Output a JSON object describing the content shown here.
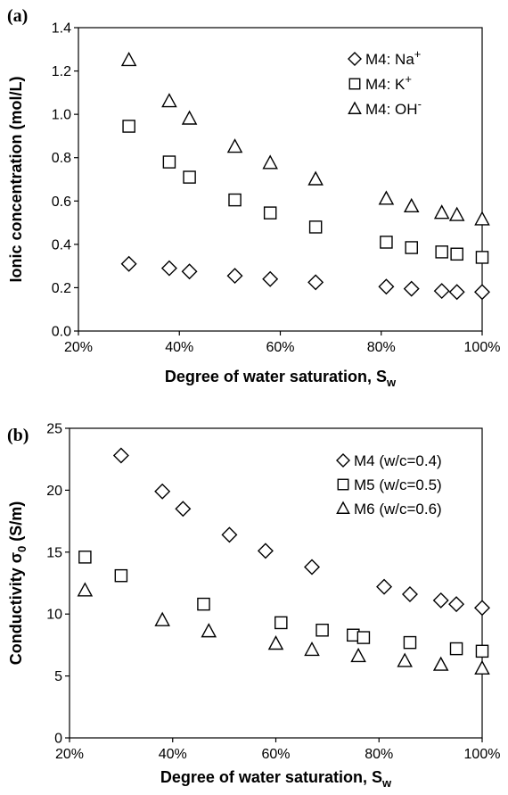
{
  "chart_data": [
    {
      "type": "scatter",
      "panel_label": "(a)",
      "xlabel_main": "Degree of water saturation, S",
      "xlabel_sub": "w",
      "ylabel": "Ionic concentration (mol/L)",
      "xlim": [
        20,
        100
      ],
      "ylim": [
        0,
        1.4
      ],
      "x_ticks": [
        20,
        40,
        60,
        80,
        100
      ],
      "x_tick_labels": [
        "20%",
        "40%",
        "60%",
        "80%",
        "100%"
      ],
      "y_ticks": [
        0,
        0.2,
        0.4,
        0.6,
        0.8,
        1.0,
        1.2,
        1.4
      ],
      "y_tick_labels": [
        "0.0",
        "0.2",
        "0.4",
        "0.6",
        "0.8",
        "1.0",
        "1.2",
        "1.4"
      ],
      "grid": false,
      "legend_position": "top-right",
      "series": [
        {
          "marker": "diamond",
          "legend_label": "M4: Na",
          "legend_sup": "+",
          "x": [
            30,
            38,
            42,
            51,
            58,
            67,
            81,
            86,
            92,
            95,
            100
          ],
          "y": [
            0.31,
            0.29,
            0.275,
            0.255,
            0.24,
            0.225,
            0.205,
            0.195,
            0.185,
            0.18,
            0.18
          ]
        },
        {
          "marker": "square",
          "legend_label": "M4: K",
          "legend_sup": "+",
          "x": [
            30,
            38,
            42,
            51,
            58,
            67,
            81,
            86,
            92,
            95,
            100
          ],
          "y": [
            0.945,
            0.78,
            0.71,
            0.605,
            0.545,
            0.48,
            0.41,
            0.385,
            0.365,
            0.355,
            0.34
          ]
        },
        {
          "marker": "triangle",
          "legend_label": "M4: OH",
          "legend_sup": "-",
          "x": [
            30,
            38,
            42,
            51,
            58,
            67,
            81,
            86,
            92,
            95,
            100
          ],
          "y": [
            1.25,
            1.06,
            0.98,
            0.85,
            0.775,
            0.7,
            0.61,
            0.575,
            0.545,
            0.535,
            0.515
          ]
        }
      ]
    },
    {
      "type": "scatter",
      "panel_label": "(b)",
      "xlabel_main": "Degree of water saturation, S",
      "xlabel_sub": "w",
      "ylabel_main": "Conductivity σ",
      "ylabel_sub": "0",
      "ylabel_tail": " (S/m)",
      "xlim": [
        20,
        100
      ],
      "ylim": [
        0,
        25
      ],
      "x_ticks": [
        20,
        40,
        60,
        80,
        100
      ],
      "x_tick_labels": [
        "20%",
        "40%",
        "60%",
        "80%",
        "100%"
      ],
      "y_ticks": [
        0,
        5,
        10,
        15,
        20,
        25
      ],
      "y_tick_labels": [
        "0",
        "5",
        "10",
        "15",
        "20",
        "25"
      ],
      "grid": false,
      "legend_position": "top-right",
      "series": [
        {
          "marker": "diamond",
          "legend_label": "M4 (w/c=0.4)",
          "x": [
            30,
            38,
            42,
            51,
            58,
            67,
            81,
            86,
            92,
            95,
            100
          ],
          "y": [
            22.8,
            19.9,
            18.5,
            16.4,
            15.1,
            13.8,
            12.2,
            11.6,
            11.1,
            10.8,
            10.5
          ]
        },
        {
          "marker": "square",
          "legend_label": "M5 (w/c=0.5)",
          "x": [
            23,
            30,
            46,
            61,
            69,
            75,
            77,
            86,
            95,
            100
          ],
          "y": [
            14.6,
            13.1,
            10.8,
            9.3,
            8.7,
            8.3,
            8.1,
            7.7,
            7.2,
            7.0
          ]
        },
        {
          "marker": "triangle",
          "legend_label": "M6 (w/c=0.6)",
          "x": [
            23,
            38,
            47,
            60,
            67,
            76,
            85,
            92,
            100
          ],
          "y": [
            11.9,
            9.5,
            8.6,
            7.6,
            7.1,
            6.6,
            6.2,
            5.9,
            5.6
          ]
        }
      ]
    }
  ]
}
